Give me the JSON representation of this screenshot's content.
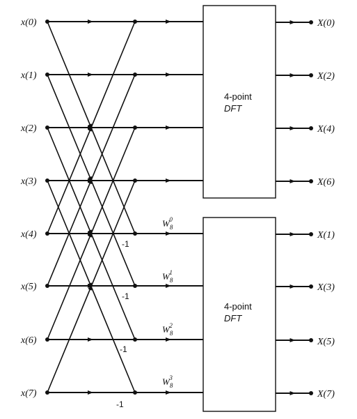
{
  "inputs": [
    "x(0)",
    "x(1)",
    "x(2)",
    "x(3)",
    "x(4)",
    "x(5)",
    "x(6)",
    "x(7)"
  ],
  "outputs_top": [
    "X(0)",
    "X(2)",
    "X(4)",
    "X(6)"
  ],
  "outputs_bottom": [
    "X(1)",
    "X(3)",
    "X(5)",
    "X(7)"
  ],
  "box_top": {
    "line1": "4-point",
    "line2": "DFT"
  },
  "box_bottom": {
    "line1": "4-point",
    "line2": "DFT"
  },
  "twiddles": [
    {
      "base": "W",
      "sub": "8",
      "sup": "0"
    },
    {
      "base": "W",
      "sub": "8",
      "sup": "1"
    },
    {
      "base": "W",
      "sub": "8",
      "sup": "2"
    },
    {
      "base": "W",
      "sub": "8",
      "sup": "3"
    }
  ],
  "minus_one": "-1"
}
